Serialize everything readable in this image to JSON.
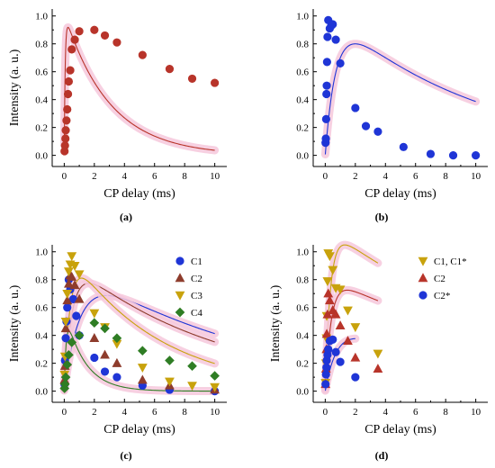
{
  "colors": {
    "red": "#b8342a",
    "blue": "#1f35d6",
    "olive": "#8e3c2c",
    "gold": "#c8a20c",
    "green": "#2f7d24",
    "band": "#f6c8dc"
  },
  "chart_data": [
    {
      "type": "scatter",
      "panel_label": "(a)",
      "xlabel": "CP delay (ms)",
      "ylabel": "Intensity (a. u.)",
      "xlim": [
        -0.8,
        10.8
      ],
      "ylim": [
        -0.08,
        1.05
      ],
      "xticks": [
        0,
        2,
        4,
        6,
        8,
        10
      ],
      "yticks": [
        0.0,
        0.2,
        0.4,
        0.6,
        0.8,
        1.0
      ],
      "legend": null,
      "series": [
        {
          "color": "#b8342a",
          "marker": "circle",
          "x": [
            0.02,
            0.05,
            0.08,
            0.1,
            0.15,
            0.2,
            0.25,
            0.3,
            0.4,
            0.5,
            0.7,
            1.0,
            2.0,
            2.7,
            3.5,
            5.2,
            7.0,
            8.5,
            10.0
          ],
          "y": [
            0.03,
            0.07,
            0.12,
            0.18,
            0.25,
            0.33,
            0.44,
            0.53,
            0.61,
            0.76,
            0.83,
            0.89,
            0.9,
            0.86,
            0.81,
            0.72,
            0.62,
            0.55,
            0.52
          ],
          "fit": {
            "A": 1.02,
            "kr": 0.065,
            "kc": 3.0
          }
        }
      ]
    },
    {
      "type": "scatter",
      "panel_label": "(b)",
      "xlabel": "CP delay (ms)",
      "ylabel": "",
      "xlim": [
        -0.8,
        10.8
      ],
      "ylim": [
        -0.08,
        1.05
      ],
      "xticks": [
        0,
        2,
        4,
        6,
        8,
        10
      ],
      "yticks": [
        0.0,
        0.2,
        0.4,
        0.6,
        0.8,
        1.0
      ],
      "legend": null,
      "series": [
        {
          "color": "#1f35d6",
          "marker": "circle",
          "x": [
            0.02,
            0.04,
            0.06,
            0.08,
            0.1,
            0.12,
            0.15,
            0.2,
            0.3,
            0.4,
            0.5,
            0.7,
            1.0,
            2.0,
            2.7,
            3.5,
            5.2,
            7.0,
            8.5,
            10.0
          ],
          "y": [
            0.09,
            0.12,
            0.26,
            0.44,
            0.5,
            0.67,
            0.85,
            0.97,
            0.91,
            0.93,
            0.94,
            0.83,
            0.66,
            0.34,
            0.21,
            0.17,
            0.06,
            0.01,
            0.0,
            0.0
          ],
          "fit": {
            "A": 1.05,
            "kr": 0.75,
            "kc": 10.0
          }
        }
      ]
    },
    {
      "type": "scatter",
      "panel_label": "(c)",
      "xlabel": "CP delay (ms)",
      "ylabel": "Intensity (a. u.)",
      "xlim": [
        -0.8,
        10.8
      ],
      "ylim": [
        -0.08,
        1.05
      ],
      "xticks": [
        0,
        2,
        4,
        6,
        8,
        10
      ],
      "yticks": [
        0.0,
        0.2,
        0.4,
        0.6,
        0.8,
        1.0
      ],
      "legend": "top-right",
      "series": [
        {
          "name": "C1",
          "color": "#1f35d6",
          "marker": "circle",
          "x": [
            0.02,
            0.05,
            0.1,
            0.15,
            0.2,
            0.3,
            0.4,
            0.6,
            0.8,
            1.0,
            2.0,
            2.7,
            3.5,
            5.2,
            7.0,
            10.0
          ],
          "y": [
            0.05,
            0.22,
            0.38,
            0.5,
            0.6,
            0.8,
            0.73,
            0.66,
            0.54,
            0.4,
            0.24,
            0.14,
            0.1,
            0.04,
            0.01,
            0.0
          ],
          "fit": {
            "A": 0.95,
            "kr": 1.15,
            "kc": 12.0
          }
        },
        {
          "name": "C2",
          "color": "#8e3c2c",
          "marker": "triangle-up",
          "x": [
            0.02,
            0.05,
            0.1,
            0.2,
            0.3,
            0.4,
            0.5,
            0.7,
            1.0,
            2.0,
            2.7,
            3.5,
            5.2,
            7.0,
            10.0
          ],
          "y": [
            0.08,
            0.18,
            0.45,
            0.65,
            0.77,
            0.83,
            0.82,
            0.76,
            0.66,
            0.38,
            0.26,
            0.2,
            0.08,
            0.04,
            0.01
          ],
          "fit": {
            "A": 0.96,
            "kr": 0.55,
            "kc": 10.0
          }
        },
        {
          "name": "C3",
          "color": "#c8a20c",
          "marker": "triangle-down",
          "x": [
            0.02,
            0.05,
            0.1,
            0.2,
            0.3,
            0.4,
            0.5,
            0.7,
            1.0,
            2.0,
            2.7,
            3.5,
            5.2,
            7.0,
            8.5,
            10.0
          ],
          "y": [
            0.12,
            0.25,
            0.5,
            0.7,
            0.86,
            0.91,
            0.97,
            0.9,
            0.84,
            0.56,
            0.46,
            0.34,
            0.17,
            0.07,
            0.04,
            0.03
          ],
          "fit": {
            "A": 1.05,
            "kr": 0.42,
            "kc": 6.0
          }
        },
        {
          "name": "C4",
          "color": "#2f7d24",
          "marker": "diamond",
          "x": [
            0.02,
            0.05,
            0.1,
            0.2,
            0.3,
            0.5,
            1.0,
            2.0,
            2.7,
            3.5,
            5.2,
            7.0,
            8.5,
            10.0
          ],
          "y": [
            0.02,
            0.05,
            0.1,
            0.19,
            0.26,
            0.35,
            0.4,
            0.49,
            0.45,
            0.38,
            0.29,
            0.22,
            0.18,
            0.11
          ],
          "fit": {
            "A": 0.6,
            "kr": 0.13,
            "kc": 1.3
          }
        }
      ]
    },
    {
      "type": "scatter",
      "panel_label": "(d)",
      "xlabel": "CP delay (ms)",
      "ylabel": "Intensity (a. u.)",
      "xlim": [
        -0.8,
        10.8
      ],
      "ylim": [
        -0.08,
        1.05
      ],
      "xticks": [
        0,
        2,
        4,
        6,
        8,
        10
      ],
      "yticks": [
        0.0,
        0.2,
        0.4,
        0.6,
        0.8,
        1.0
      ],
      "legend": "top-right",
      "series": [
        {
          "name": "C1, C1*",
          "color": "#c8a20c",
          "marker": "triangle-down",
          "x": [
            0.02,
            0.05,
            0.08,
            0.1,
            0.15,
            0.2,
            0.3,
            0.5,
            0.7,
            1.0,
            1.5,
            2.0,
            3.5
          ],
          "y": [
            0.06,
            0.2,
            0.38,
            0.54,
            0.79,
            0.99,
            0.97,
            0.87,
            0.74,
            0.73,
            0.58,
            0.46,
            0.27
          ],
          "fit": {
            "A": 1.18,
            "kr": 0.35,
            "kc": 14.0
          }
        },
        {
          "name": "C2",
          "color": "#b8342a",
          "marker": "triangle-up",
          "x": [
            0.02,
            0.05,
            0.08,
            0.1,
            0.15,
            0.2,
            0.3,
            0.5,
            0.7,
            1.0,
            1.5,
            2.0,
            3.5
          ],
          "y": [
            0.05,
            0.16,
            0.3,
            0.41,
            0.55,
            0.7,
            0.65,
            0.58,
            0.55,
            0.47,
            0.36,
            0.24,
            0.16
          ],
          "fit": {
            "A": 0.82,
            "kr": 0.4,
            "kc": 15.0
          }
        },
        {
          "name": "C2*",
          "color": "#1f35d6",
          "marker": "circle",
          "x": [
            0.02,
            0.05,
            0.08,
            0.1,
            0.15,
            0.2,
            0.3,
            0.5,
            0.7,
            1.0,
            2.0
          ],
          "y": [
            0.05,
            0.12,
            0.17,
            0.22,
            0.26,
            0.3,
            0.36,
            0.37,
            0.28,
            0.21,
            0.1
          ],
          "fit": {
            "A": 0.52,
            "kr": 0.85,
            "kc": 9.0
          }
        }
      ]
    }
  ]
}
